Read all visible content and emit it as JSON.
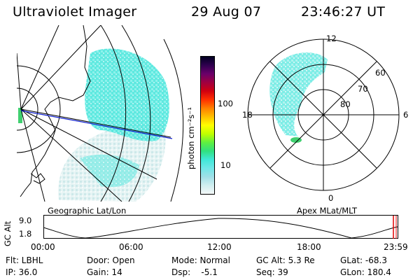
{
  "header": {
    "title": "Ultraviolet Imager",
    "date": "29 Aug 07",
    "time": "23:46:27 UT"
  },
  "left_map": {
    "caption": "Geographic Lat/Lon"
  },
  "right_map": {
    "caption": "Apex  MLat/MLT",
    "mlt_labels": {
      "top": "12",
      "left": "18",
      "right": "6",
      "bottom": "0"
    },
    "lat_labels": [
      "60",
      "70",
      "80"
    ]
  },
  "colorbar": {
    "unit_label": "photon cm⁻²s⁻¹",
    "ticks": [
      "100",
      "10"
    ],
    "colors": [
      "#000020",
      "#300050",
      "#6a006a",
      "#a00040",
      "#d00010",
      "#ff3000",
      "#ff8000",
      "#ffc000",
      "#ffff00",
      "#c0ff00",
      "#60f040",
      "#30e080",
      "#40e8d8",
      "#70e8e8",
      "#a0e0e8",
      "#d0eef0",
      "#f4f8f8"
    ]
  },
  "altitude_plot": {
    "ylabel": "GC Alt",
    "yticks": [
      "9.0",
      "1.8"
    ],
    "xticks": [
      "00:00",
      "06:00",
      "12:00",
      "18:00",
      "23:59"
    ]
  },
  "info": {
    "row1": {
      "filter": "Flt: LBHL",
      "door": "Door: Open",
      "mode": "Mode: Normal",
      "gc_alt": "GC Alt: 5.3 Re",
      "glat": "GLat: -68.3"
    },
    "row2": {
      "ip": "IP: 36.0",
      "gain": "Gain: 14",
      "dsp": "Dsp:    -5.1",
      "seq": "Seq: 39",
      "glon": "GLon: 180.4"
    }
  }
}
